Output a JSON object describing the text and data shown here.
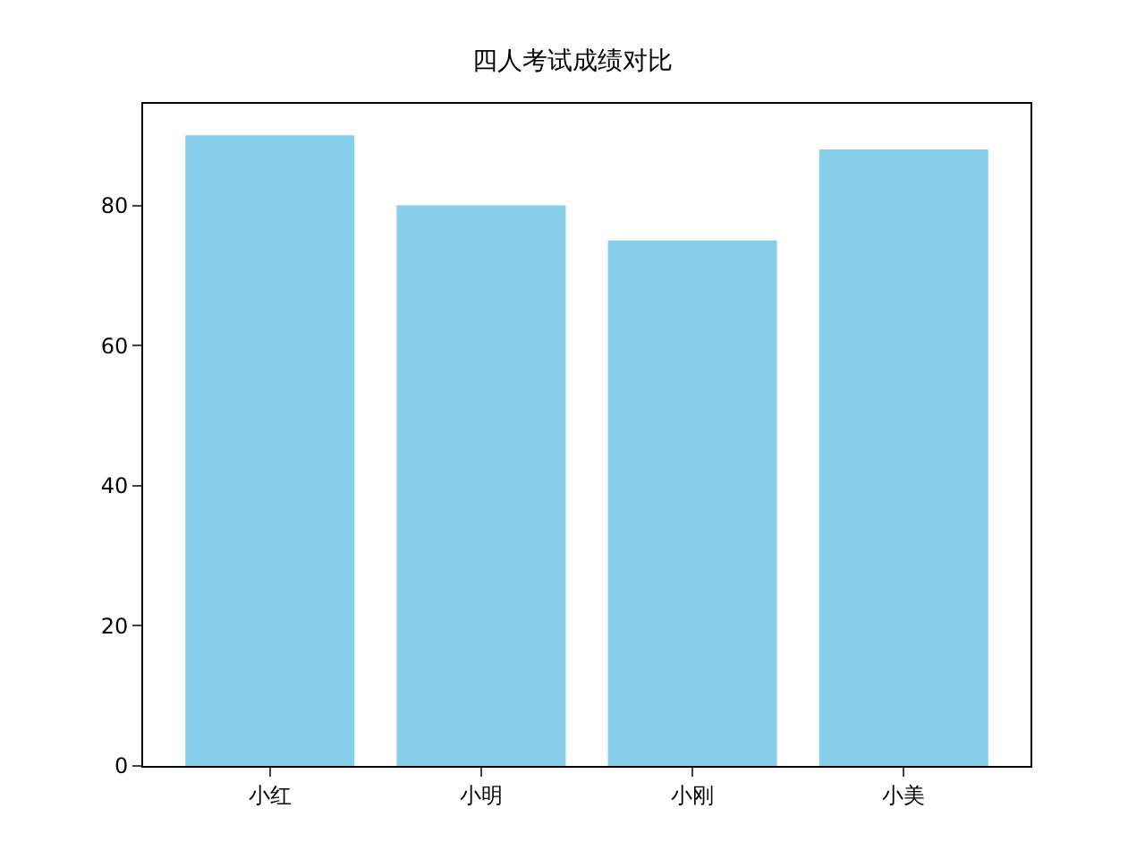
{
  "chart_data": {
    "type": "bar",
    "title": "四人考试成绩对比",
    "categories": [
      "小红",
      "小明",
      "小刚",
      "小美"
    ],
    "values": [
      90,
      80,
      75,
      88
    ],
    "color": "#87ceeb",
    "ylim": [
      0,
      94.5
    ],
    "yticks": [
      0,
      20,
      40,
      60,
      80
    ]
  }
}
